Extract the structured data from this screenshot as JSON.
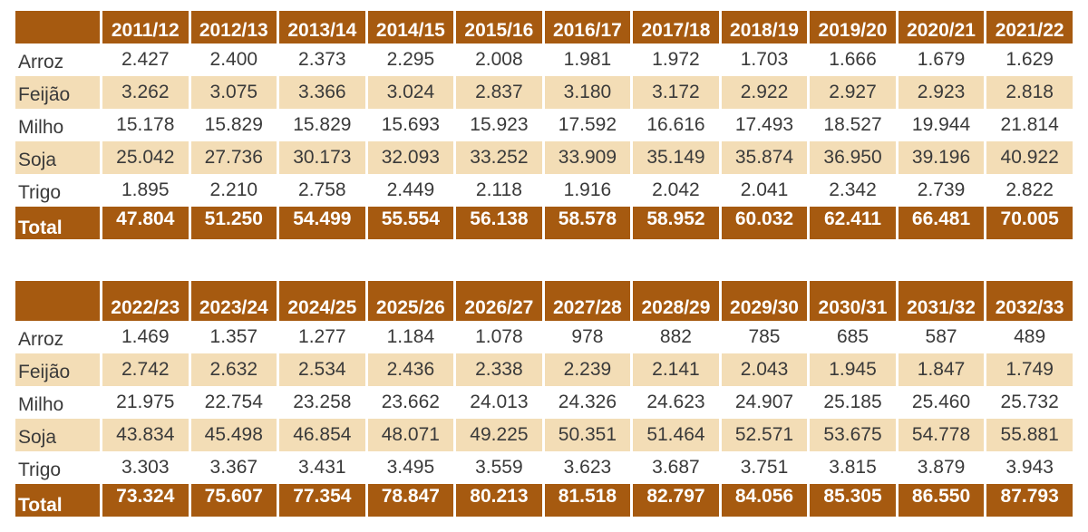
{
  "chart_data": [
    {
      "type": "table",
      "columns": [
        "2011/12",
        "2012/13",
        "2013/14",
        "2014/15",
        "2015/16",
        "2016/17",
        "2017/18",
        "2018/19",
        "2019/20",
        "2020/21",
        "2021/22"
      ],
      "rows": [
        {
          "label": "Arroz",
          "values": [
            "2.427",
            "2.400",
            "2.373",
            "2.295",
            "2.008",
            "1.981",
            "1.972",
            "1.703",
            "1.666",
            "1.679",
            "1.629"
          ]
        },
        {
          "label": "Feijão",
          "values": [
            "3.262",
            "3.075",
            "3.366",
            "3.024",
            "2.837",
            "3.180",
            "3.172",
            "2.922",
            "2.927",
            "2.923",
            "2.818"
          ]
        },
        {
          "label": "Milho",
          "values": [
            "15.178",
            "15.829",
            "15.829",
            "15.693",
            "15.923",
            "17.592",
            "16.616",
            "17.493",
            "18.527",
            "19.944",
            "21.814"
          ]
        },
        {
          "label": "Soja",
          "values": [
            "25.042",
            "27.736",
            "30.173",
            "32.093",
            "33.252",
            "33.909",
            "35.149",
            "35.874",
            "36.950",
            "39.196",
            "40.922"
          ]
        },
        {
          "label": "Trigo",
          "values": [
            "1.895",
            "2.210",
            "2.758",
            "2.449",
            "2.118",
            "1.916",
            "2.042",
            "2.041",
            "2.342",
            "2.739",
            "2.822"
          ]
        },
        {
          "label": "Total",
          "values": [
            "47.804",
            "51.250",
            "54.499",
            "55.554",
            "56.138",
            "58.578",
            "58.952",
            "60.032",
            "62.411",
            "66.481",
            "70.005"
          ]
        }
      ]
    },
    {
      "type": "table",
      "columns": [
        "2022/23",
        "2023/24",
        "2024/25",
        "2025/26",
        "2026/27",
        "2027/28",
        "2028/29",
        "2029/30",
        "2030/31",
        "2031/32",
        "2032/33"
      ],
      "rows": [
        {
          "label": "Arroz",
          "values": [
            "1.469",
            "1.357",
            "1.277",
            "1.184",
            "1.078",
            "978",
            "882",
            "785",
            "685",
            "587",
            "489"
          ]
        },
        {
          "label": "Feijão",
          "values": [
            "2.742",
            "2.632",
            "2.534",
            "2.436",
            "2.338",
            "2.239",
            "2.141",
            "2.043",
            "1.945",
            "1.847",
            "1.749"
          ]
        },
        {
          "label": "Milho",
          "values": [
            "21.975",
            "22.754",
            "23.258",
            "23.662",
            "24.013",
            "24.326",
            "24.623",
            "24.907",
            "25.185",
            "25.460",
            "25.732"
          ]
        },
        {
          "label": "Soja",
          "values": [
            "43.834",
            "45.498",
            "46.854",
            "48.071",
            "49.225",
            "50.351",
            "51.464",
            "52.571",
            "53.675",
            "54.778",
            "55.881"
          ]
        },
        {
          "label": "Trigo",
          "values": [
            "3.303",
            "3.367",
            "3.431",
            "3.495",
            "3.559",
            "3.623",
            "3.687",
            "3.751",
            "3.815",
            "3.879",
            "3.943"
          ]
        },
        {
          "label": "Total",
          "values": [
            "73.324",
            "75.607",
            "77.354",
            "78.847",
            "80.213",
            "81.518",
            "82.797",
            "84.056",
            "85.305",
            "86.550",
            "87.793"
          ]
        }
      ]
    }
  ],
  "colors": {
    "header_bg": "#a65a10",
    "header_text": "#ffffff",
    "alt_row_bg": "#f3ddb6",
    "body_text": "#3a3a3a"
  }
}
